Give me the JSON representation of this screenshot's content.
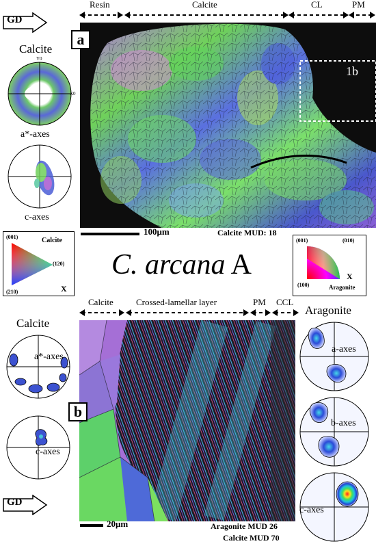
{
  "top": {
    "gd_label": "GD",
    "panel_label": "a",
    "headers": {
      "resin": "Resin",
      "calcite": "Calcite",
      "cl": "CL",
      "pm": "PM"
    },
    "pole_title": "Calcite",
    "pole_axis_y": "Y0",
    "pole_axis_x": "X0",
    "pf1_label": "a*-axes",
    "pf2_label": "c-axes",
    "inset_label": "1b",
    "scale_label": "100μm",
    "mud": "Calcite MUD: 18"
  },
  "middle": {
    "title_italic": "C. arcana",
    "title_suffix": "A",
    "calcite_key": {
      "title": "Calcite",
      "p001": "(001)",
      "p120": "(120)",
      "p210": "(210)",
      "x": "X"
    },
    "aragonite_key": {
      "title": "Aragonite",
      "p001": "(001)",
      "p010": "(010)",
      "p100": "(100)",
      "x": "X"
    }
  },
  "bottom": {
    "panel_label": "b",
    "gd_label": "GD",
    "headers": {
      "calcite": "Calcite",
      "crossed": "Crossed-lamellar layer",
      "pm": "PM",
      "ccl": "CCL"
    },
    "calcite_title": "Calcite",
    "calcite_pf1": "a*-axes",
    "calcite_pf2": "c-axes",
    "aragonite_title": "Aragonite",
    "aragonite_pf1": "a-axes",
    "aragonite_pf2": "b-axes",
    "aragonite_pf3": "c-axes",
    "scale_label": "20μm",
    "mud_aragonite": "Aragonite MUD 26",
    "mud_calcite": "Calcite MUD 70"
  },
  "colors": {
    "map_background": "#0d0d0d",
    "calcite_green": "#5ed14a",
    "calcite_blue": "#4f63d6",
    "calcite_purple": "#a55ad0",
    "aragonite_cyan": "#46c4d8",
    "aragonite_pink": "#d44a86",
    "contour_blue": "#1e3cc8"
  }
}
